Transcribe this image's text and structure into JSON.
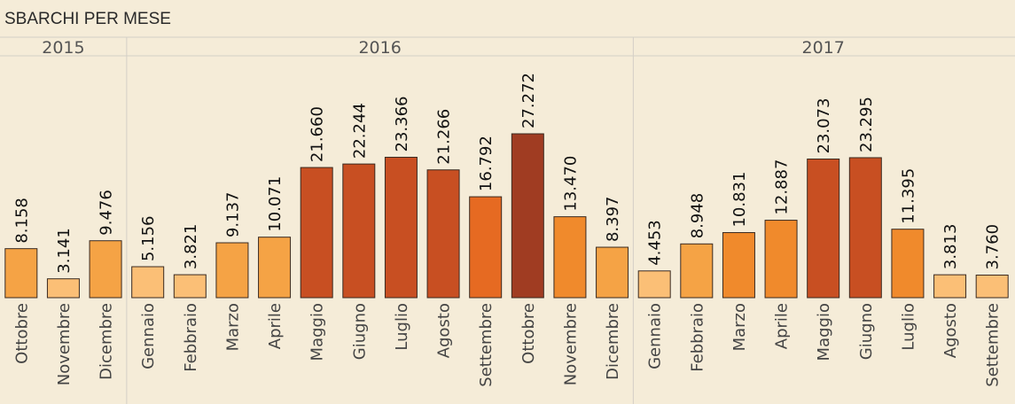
{
  "chart_data": {
    "type": "bar",
    "title": "SBARCHI PER MESE",
    "years": [
      {
        "label": "2015",
        "months": [
          "Ottobre",
          "Novembre",
          "Dicembre"
        ]
      },
      {
        "label": "2016",
        "months": [
          "Gennaio",
          "Febbraio",
          "Marzo",
          "Aprile",
          "Maggio",
          "Giugno",
          "Luglio",
          "Agosto",
          "Settembre",
          "Ottobre",
          "Novembre",
          "Dicembre"
        ]
      },
      {
        "label": "2017",
        "months": [
          "Gennaio",
          "Febbraio",
          "Marzo",
          "Aprile",
          "Maggio",
          "Giugno",
          "Luglio",
          "Agosto",
          "Settembre"
        ]
      }
    ],
    "values": [
      8158,
      3141,
      9476,
      5156,
      3821,
      9137,
      10071,
      21660,
      22244,
      23366,
      21266,
      16792,
      27272,
      13470,
      8397,
      4453,
      8948,
      10831,
      12887,
      23073,
      23295,
      11395,
      3813,
      3760
    ],
    "value_labels": [
      "8.158",
      "3.141",
      "9.476",
      "5.156",
      "3.821",
      "9.137",
      "10.071",
      "21.660",
      "22.244",
      "23.366",
      "21.266",
      "16.792",
      "27.272",
      "13.470",
      "8.397",
      "4.453",
      "8.948",
      "10.831",
      "12.887",
      "23.073",
      "23.295",
      "11.395",
      "3.813",
      "3.760"
    ],
    "ylim": [
      0,
      27272
    ],
    "grid": false,
    "legend": "none",
    "color_scale": [
      "#fbbf76",
      "#f5a345",
      "#f08a2c",
      "#e66a22",
      "#c84f22",
      "#a03c22"
    ],
    "border_color": "#3a2a20",
    "divider_color": "#d4cfc6"
  }
}
